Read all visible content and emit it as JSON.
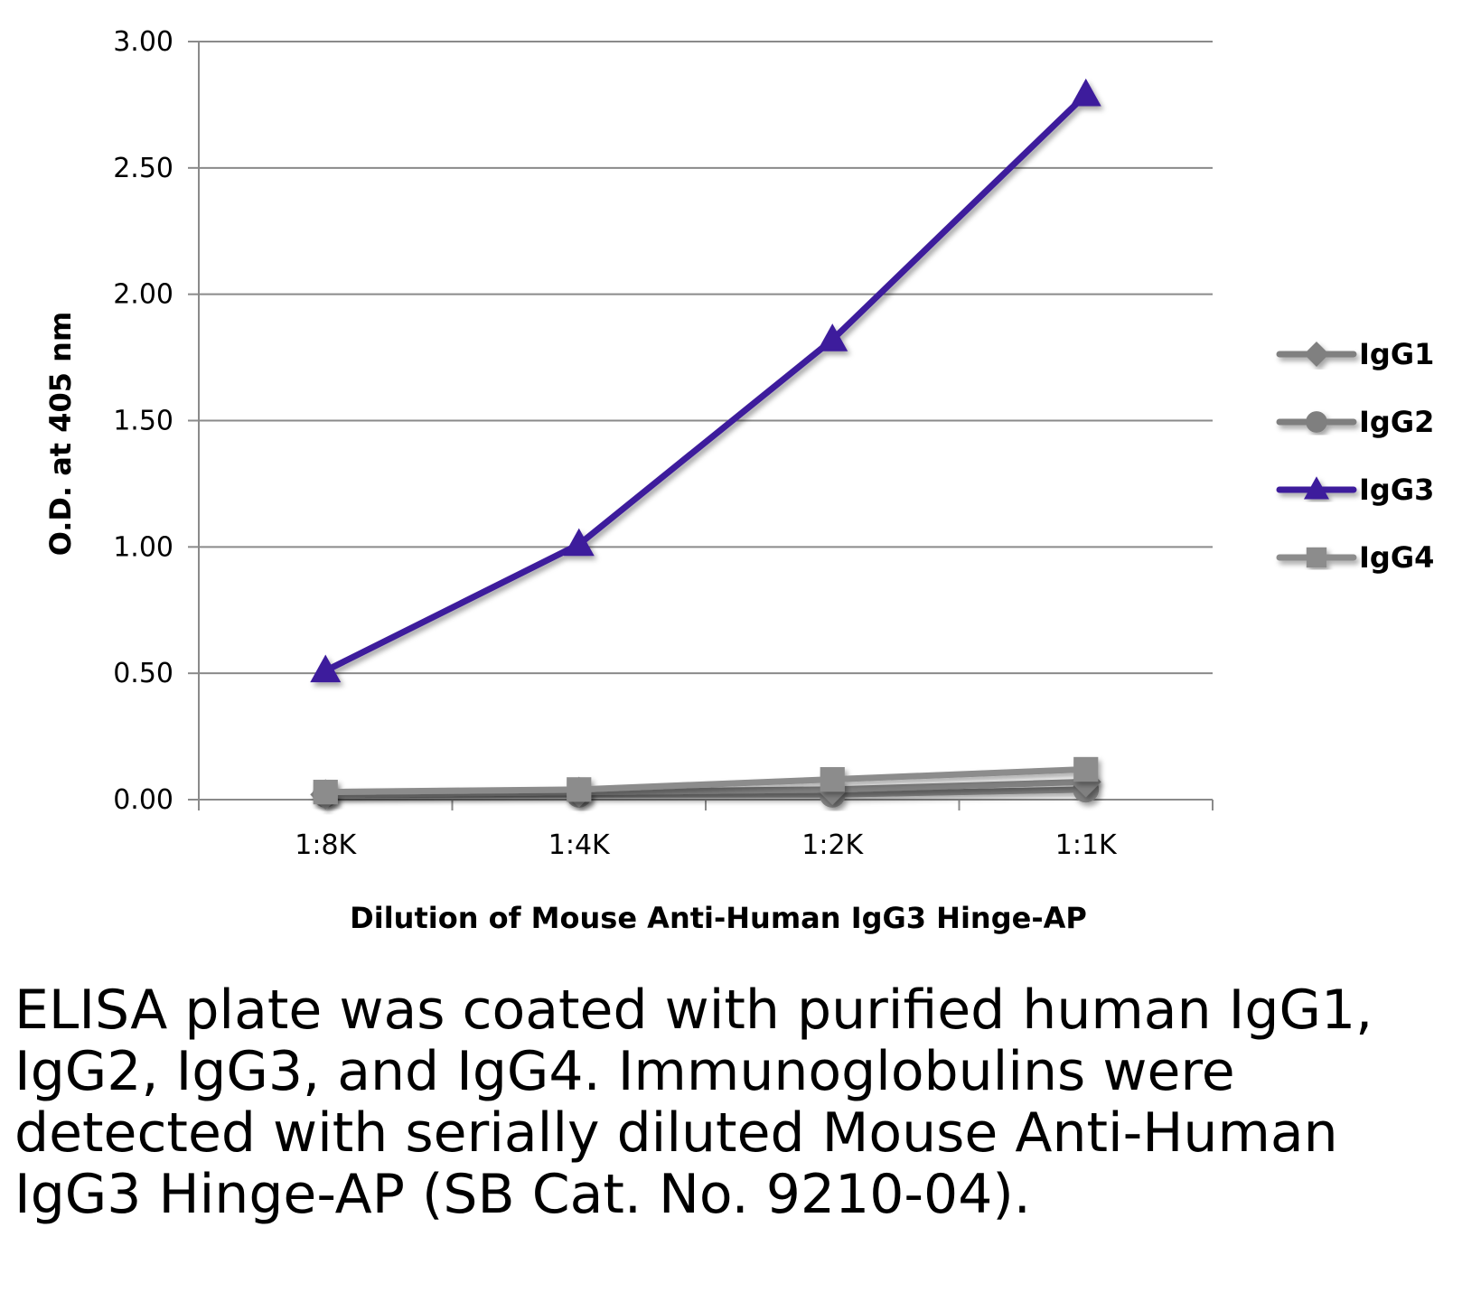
{
  "chart_data": {
    "type": "line",
    "categories": [
      "1:8K",
      "1:4K",
      "1:2K",
      "1:1K"
    ],
    "series": [
      {
        "name": "IgG1",
        "values": [
          0.02,
          0.03,
          0.04,
          0.07
        ],
        "color": "#808080",
        "marker": "diamond"
      },
      {
        "name": "IgG2",
        "values": [
          0.02,
          0.02,
          0.02,
          0.04
        ],
        "color": "#7f7f7f",
        "marker": "circle"
      },
      {
        "name": "IgG3",
        "values": [
          0.51,
          1.01,
          1.82,
          2.79
        ],
        "color": "#3d1a9c",
        "marker": "triangle"
      },
      {
        "name": "IgG4",
        "values": [
          0.03,
          0.04,
          0.08,
          0.12
        ],
        "color": "#8c8c8c",
        "marker": "square"
      }
    ],
    "y_ticks": [
      "0.00",
      "0.50",
      "1.00",
      "1.50",
      "2.00",
      "2.50",
      "3.00"
    ],
    "ylim": [
      0,
      3
    ],
    "ylabel": "O.D. at 405 nm",
    "xlabel": "Dilution of Mouse Anti-Human IgG3 Hinge-AP",
    "grid": true,
    "legend_position": "right"
  },
  "caption": "ELISA plate was coated with purified human IgG1, IgG2, IgG3, and IgG4.  Immunoglobulins were detected with serially diluted Mouse Anti-Human IgG3 Hinge-AP (SB Cat. No. 9210-04)."
}
